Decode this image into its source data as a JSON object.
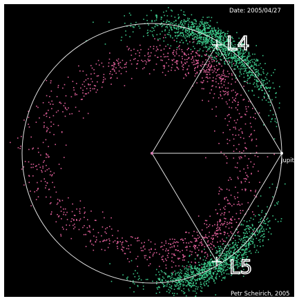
{
  "date_text": "Date: 2005/04/27",
  "labels": {
    "l4": "L4",
    "l5": "L5",
    "planet": "Jupiter"
  },
  "credit": "Petr Scheirich, 2005",
  "colors": {
    "background": "#000000",
    "orbit": "#e6e6e6",
    "hilda_asteroids": "#e0609a",
    "trojan_asteroids": "#3cc98a",
    "sun": "#d97fb6"
  }
}
